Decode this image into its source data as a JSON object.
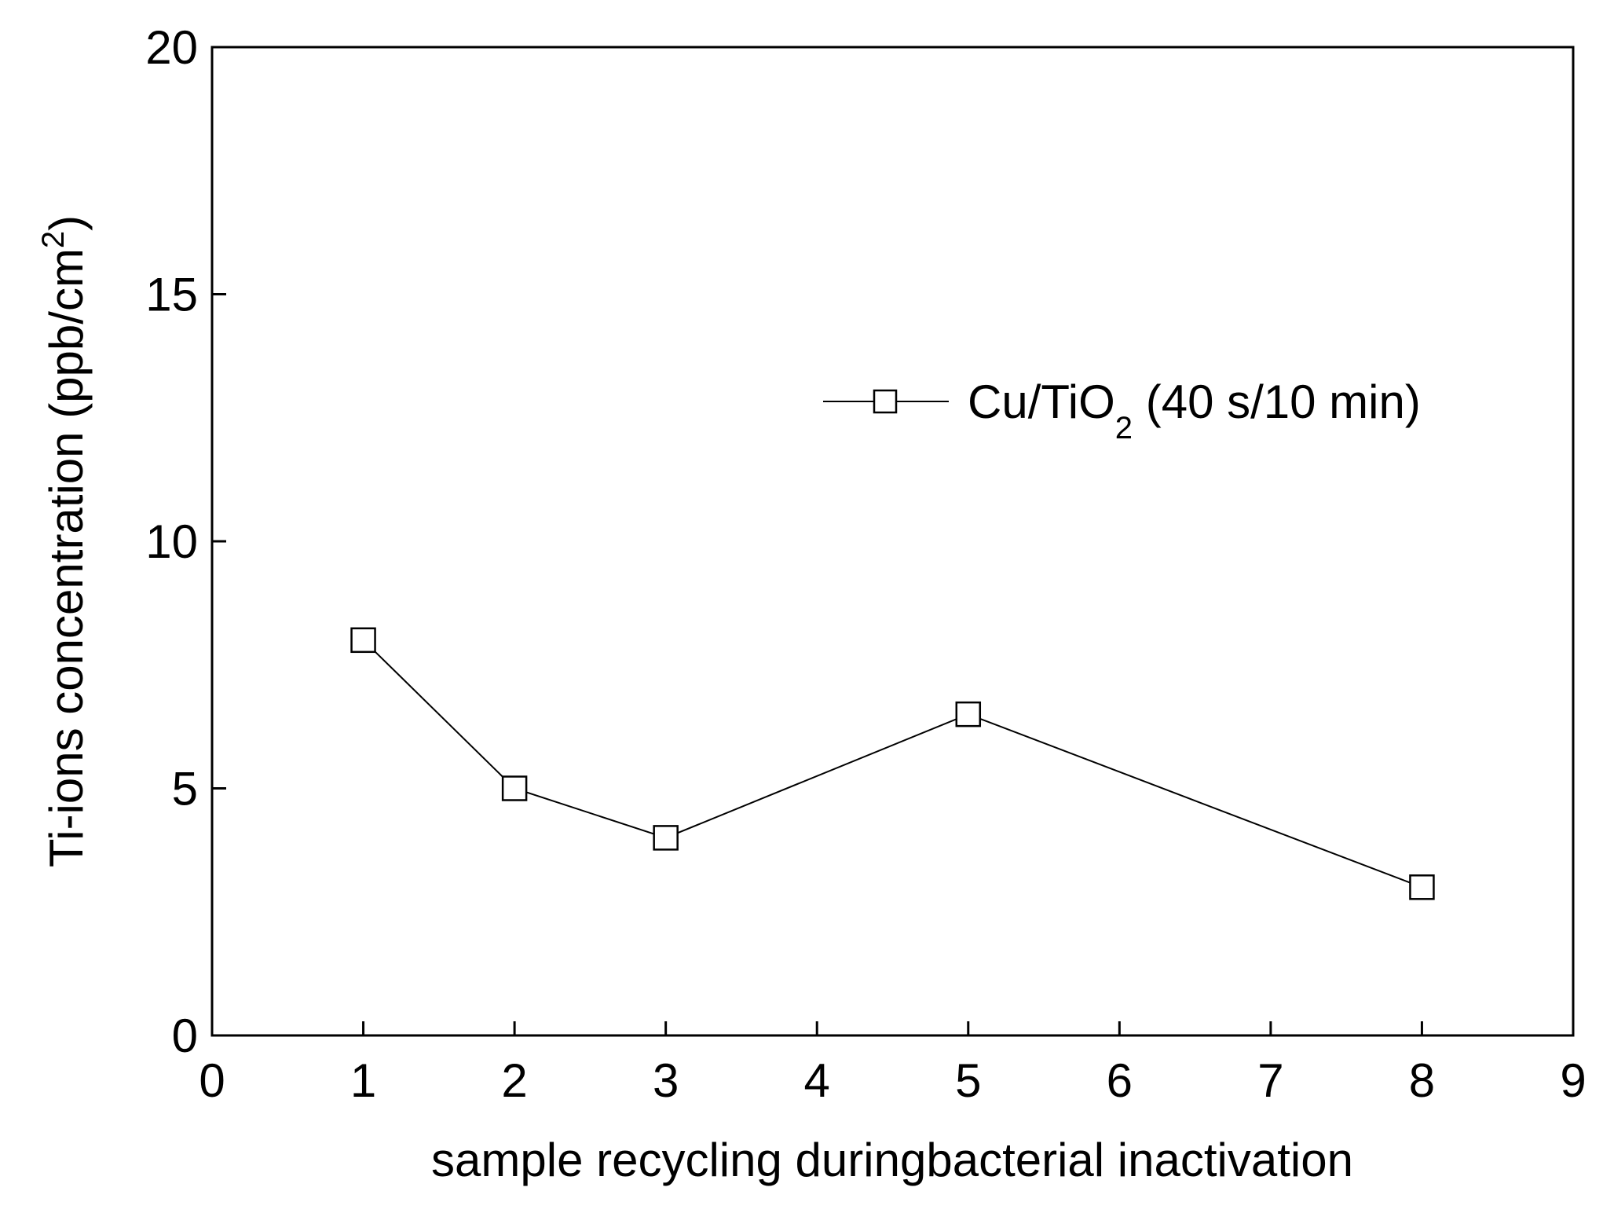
{
  "chart_data": {
    "type": "line",
    "x": [
      1,
      2,
      3,
      5,
      8
    ],
    "series": [
      {
        "name_main": "Cu/TiO",
        "name_sub": "2",
        "name_rest": " (40 s/10 min)",
        "values": [
          8.0,
          5.0,
          4.0,
          6.5,
          3.0
        ],
        "marker": "open-square",
        "color": "#000000"
      }
    ],
    "xlabel": "sample recycling duringbacterial inactivation",
    "ylabel_main": "Ti-ions concentration (ppb/cm",
    "ylabel_sup": "2",
    "ylabel_end": ")",
    "xlim": [
      0,
      9
    ],
    "ylim": [
      0,
      20
    ],
    "xticks": [
      "0",
      "1",
      "2",
      "3",
      "4",
      "5",
      "6",
      "7",
      "8",
      "9"
    ],
    "yticks": [
      "0",
      "5",
      "10",
      "15",
      "20"
    ],
    "grid": false,
    "legend_position": "upper-right"
  }
}
